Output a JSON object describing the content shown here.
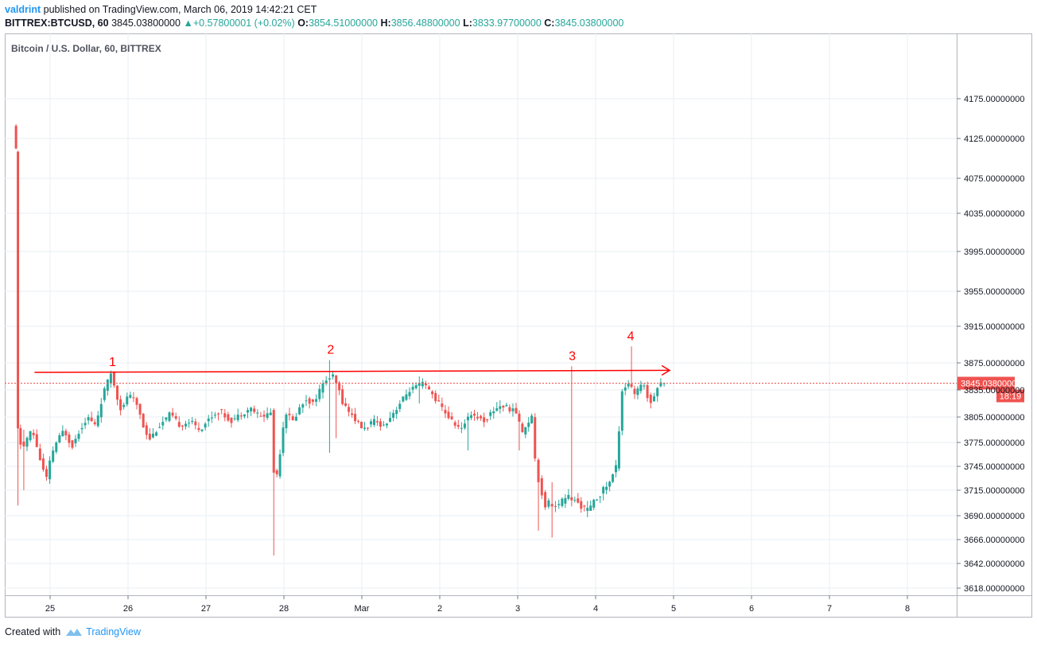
{
  "header": {
    "author": "valdrint",
    "published_text": "published on TradingView.com, March 06, 2019 14:42:21 CET"
  },
  "quote": {
    "symbol": "BITTREX:BTCUSD, 60",
    "last": "3845.03800000",
    "change_arrow": "▲",
    "change": "+0.57800001 (+0.02%)",
    "o_label": "O:",
    "o_value": "3854.51000000",
    "h_label": "H:",
    "h_value": "3856.48800000",
    "l_label": "L:",
    "l_value": "3833.97700000",
    "c_label": "C:",
    "c_value": "3845.03800000"
  },
  "footer": {
    "created_with": "Created with",
    "brand": "TradingView"
  },
  "colors": {
    "up": "#26a69a",
    "down": "#ef5350",
    "annotation": "#ff0000",
    "grid": "#e9eff3",
    "price_tag": "#ef5350"
  },
  "chart_data": {
    "type": "candlestick",
    "title": "Bitcoin / U.S. Dollar, 60, BITTREX",
    "interval": "60",
    "x_ticks": [
      "25",
      "26",
      "27",
      "28",
      "Mar",
      "2",
      "3",
      "4",
      "5",
      "6",
      "7",
      "8"
    ],
    "y_ticks": [
      4175,
      4125,
      4075,
      4035,
      3995,
      3955,
      3915,
      3875,
      3835,
      3805,
      3775,
      3745,
      3715,
      3690,
      3666,
      3642,
      3618
    ],
    "y_tick_labels": [
      "4175.00000000",
      "4125.00000000",
      "4075.00000000",
      "4035.00000000",
      "3995.00000000",
      "3955.00000000",
      "3915.00000000",
      "3875.00000000",
      "3835.00000000",
      "3805.00000000",
      "3775.00000000",
      "3745.00000000",
      "3715.00000000",
      "3690.00000000",
      "3666.00000000",
      "3642.00000000",
      "3618.00000000"
    ],
    "y_range": [
      3600,
      4200
    ],
    "last_price": 3845.038,
    "last_price_label": "3845.03800000",
    "countdown_label": "18:19",
    "grid": true,
    "resistance_line": {
      "start_day": 24.8,
      "start_price": 3861,
      "end_day": 32.95,
      "end_price": 3864
    },
    "annotations": [
      {
        "label": "1",
        "day": 25.8,
        "price": 3861
      },
      {
        "label": "2",
        "day": 28.6,
        "price": 3878
      },
      {
        "label": "3",
        "day": 31.7,
        "price": 3870
      },
      {
        "label": "4",
        "day": 32.45,
        "price": 3893
      }
    ],
    "segments": [
      {
        "from_day": 24.55,
        "to_day": 24.6,
        "path": [
          4140,
          4132,
          4120,
          4110,
          4080,
          3880,
          3790
        ]
      },
      {
        "from_day": 24.6,
        "to_day": 25.1,
        "path": [
          3790,
          3765,
          3780,
          3790,
          3770,
          3745,
          3730,
          3760,
          3775
        ]
      },
      {
        "from_day": 25.1,
        "to_day": 25.8,
        "path": [
          3775,
          3790,
          3770,
          3790,
          3805,
          3795,
          3830,
          3860
        ]
      },
      {
        "from_day": 25.8,
        "to_day": 26.3,
        "path": [
          3860,
          3830,
          3810,
          3830,
          3825,
          3815,
          3790,
          3780
        ]
      },
      {
        "from_day": 26.3,
        "to_day": 27.85,
        "path": [
          3780,
          3795,
          3808,
          3795,
          3800,
          3790,
          3805,
          3812,
          3800,
          3808,
          3815,
          3805,
          3810
        ]
      },
      {
        "from_day": 27.85,
        "to_day": 28.05,
        "path": [
          3810,
          3720,
          3745,
          3790,
          3810
        ]
      },
      {
        "from_day": 28.05,
        "to_day": 28.65,
        "path": [
          3810,
          3800,
          3815,
          3825,
          3820,
          3835,
          3850,
          3855
        ]
      },
      {
        "from_day": 28.65,
        "to_day": 29.3,
        "path": [
          3855,
          3820,
          3805,
          3790,
          3800,
          3795
        ]
      },
      {
        "from_day": 29.3,
        "to_day": 29.8,
        "path": [
          3795,
          3805,
          3815,
          3825,
          3835,
          3840,
          3845
        ]
      },
      {
        "from_day": 29.8,
        "to_day": 30.3,
        "path": [
          3845,
          3830,
          3815,
          3800,
          3790
        ]
      },
      {
        "from_day": 30.3,
        "to_day": 31.0,
        "path": [
          3790,
          3810,
          3805,
          3800,
          3812,
          3818,
          3815,
          3810
        ]
      },
      {
        "from_day": 31.0,
        "to_day": 31.2,
        "path": [
          3810,
          3800,
          3785,
          3795,
          3800,
          3805
        ]
      },
      {
        "from_day": 31.2,
        "to_day": 31.55,
        "path": [
          3805,
          3740,
          3715,
          3700,
          3705,
          3698,
          3700
        ]
      },
      {
        "from_day": 31.55,
        "to_day": 32.2,
        "path": [
          3700,
          3710,
          3705,
          3700,
          3695,
          3705,
          3715,
          3725
        ]
      },
      {
        "from_day": 32.2,
        "to_day": 32.6,
        "path": [
          3725,
          3745,
          3835,
          3845,
          3830,
          3840
        ]
      },
      {
        "from_day": 32.6,
        "to_day": 32.9,
        "path": [
          3840,
          3845,
          3830,
          3820,
          3825,
          3835,
          3840,
          3848,
          3845
        ]
      }
    ],
    "wick_spikes": [
      {
        "day": 24.6,
        "high": 3795,
        "low": 3700
      },
      {
        "day": 24.68,
        "high": 3790,
        "low": 3715
      },
      {
        "day": 27.85,
        "high": 3800,
        "low": 3650
      },
      {
        "day": 28.6,
        "high": 3878,
        "low": 3762
      },
      {
        "day": 28.65,
        "high": 3855,
        "low": 3780
      },
      {
        "day": 29.75,
        "high": 3855,
        "low": 3820
      },
      {
        "day": 30.35,
        "high": 3800,
        "low": 3765
      },
      {
        "day": 31.0,
        "high": 3795,
        "low": 3765
      },
      {
        "day": 31.25,
        "high": 3720,
        "low": 3675
      },
      {
        "day": 31.45,
        "high": 3725,
        "low": 3668
      },
      {
        "day": 31.7,
        "high": 3870,
        "low": 3810
      },
      {
        "day": 32.45,
        "high": 3893,
        "low": 3838
      }
    ]
  }
}
